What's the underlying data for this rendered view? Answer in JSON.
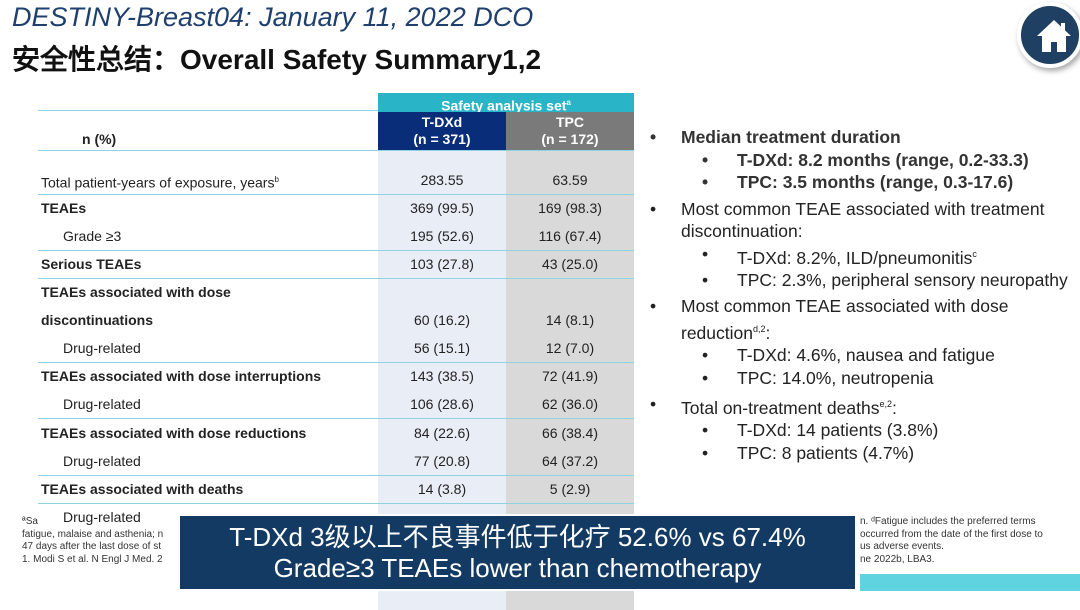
{
  "title": "DESTINY-Breast04: January 11, 2022 DCO",
  "subtitle": "安全性总结：Overall Safety Summary1,2",
  "home_icon": "home-icon",
  "table": {
    "set_header": "Safety analysis set",
    "set_sup": "a",
    "n_label": "n (%)",
    "col1": {
      "name": "T-DXd",
      "n": "(n = 371)",
      "color": "#0a2d7a"
    },
    "col2": {
      "name": "TPC",
      "n": "(n = 172)",
      "color": "#7a7a7a"
    },
    "rows": [
      {
        "label": "Total patient-years of exposure, years",
        "sup": "b",
        "v1": "283.55",
        "v2": "63.59",
        "bold": false,
        "indent": false
      },
      {
        "label": "TEAEs",
        "v1": "369 (99.5)",
        "v2": "169 (98.3)",
        "bold": true,
        "indent": false
      },
      {
        "label": "Grade ≥3",
        "v1": "195 (52.6)",
        "v2": "116 (67.4)",
        "bold": false,
        "indent": true
      },
      {
        "label": "Serious TEAEs",
        "v1": "103 (27.8)",
        "v2": "43 (25.0)",
        "bold": true,
        "indent": false
      },
      {
        "label": "TEAEs associated with dose",
        "v1": "",
        "v2": "",
        "bold": true,
        "indent": false
      },
      {
        "label": "discontinuations",
        "v1": "60 (16.2)",
        "v2": "14 (8.1)",
        "bold": true,
        "indent": false
      },
      {
        "label": "Drug-related",
        "v1": "56 (15.1)",
        "v2": "12 (7.0)",
        "bold": false,
        "indent": true
      },
      {
        "label": "TEAEs associated with dose interruptions",
        "v1": "143 (38.5)",
        "v2": "72 (41.9)",
        "bold": true,
        "indent": false
      },
      {
        "label": "Drug-related",
        "v1": "106 (28.6)",
        "v2": "62 (36.0)",
        "bold": false,
        "indent": true
      },
      {
        "label": "TEAEs associated with dose reductions",
        "v1": "84 (22.6)",
        "v2": "66 (38.4)",
        "bold": true,
        "indent": false
      },
      {
        "label": "Drug-related",
        "v1": "77 (20.8)",
        "v2": "64 (37.2)",
        "bold": false,
        "indent": true
      },
      {
        "label": "TEAEs associated with deaths",
        "v1": "14 (3.8)",
        "v2": "5 (2.9)",
        "bold": true,
        "indent": false
      },
      {
        "label": "Drug-related",
        "v1": "",
        "v2": "",
        "bold": false,
        "indent": true
      }
    ]
  },
  "bullets": {
    "b1": "Median treatment duration",
    "b1a": "T-DXd: 8.2 months (range, 0.2-33.3)",
    "b1b": "TPC: 3.5 months (range, 0.3-17.6)",
    "b2": "Most common TEAE associated with treatment discontinuation:",
    "b2a": "T-DXd: 8.2%, ILD/pneumonitis",
    "b2a_sup": "c",
    "b2b": "TPC: 2.3%, peripheral sensory neuropathy",
    "b3": "Most common TEAE associated with dose reduction",
    "b3_sup": "d,2",
    "b3_end": ":",
    "b3a": "T-DXd: 4.6%, nausea and fatigue",
    "b3b": "TPC: 14.0%, neutropenia",
    "b4": "Total on-treatment deaths",
    "b4_sup": "e,2",
    "b4_end": ":",
    "b4a": "T-DXd: 14 patients (3.8%)",
    "b4b": "TPC: 8  patients (4.7%)"
  },
  "footnotes": {
    "l1a": "ªSa",
    "l1b": "n. ᵈFatigue includes the preferred terms",
    "l2a": "fatigue, malaise and asthenia; n",
    "l2b": "occurred from the date of the first dose to",
    "l3a": "47 days after the last dose of st",
    "l3b": "us adverse events.",
    "l4a": "1. Modi S et al. N Engl J Med. 2",
    "l4b": "ne 2022b, LBA3."
  },
  "banner": {
    "line1": "T-DXd 3级以上不良事件低于化疗 52.6% vs 67.4%",
    "line2": "Grade≥3 TEAEs lower than chemotherapy"
  }
}
